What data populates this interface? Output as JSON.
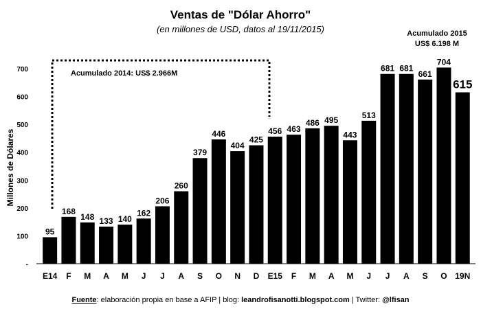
{
  "chart_data": {
    "type": "bar",
    "title": "Ventas de \"Dólar Ahorro\"",
    "subtitle": "(en millones de USD, datos al 19/11/2015)",
    "ylabel": "Millones de Dólares",
    "xlabel": "",
    "ylim": [
      0,
      700
    ],
    "yticks": [
      "-",
      "100",
      "200",
      "300",
      "400",
      "500",
      "600",
      "700"
    ],
    "grid": false,
    "bar_color": "#000000",
    "categories": [
      "E14",
      "F",
      "M",
      "A",
      "M",
      "J",
      "J",
      "A",
      "S",
      "O",
      "N",
      "D",
      "E15",
      "F",
      "M",
      "A",
      "M",
      "J",
      "J",
      "A",
      "S",
      "O",
      "19N"
    ],
    "values": [
      95,
      168,
      148,
      133,
      140,
      162,
      206,
      260,
      379,
      446,
      404,
      425,
      456,
      463,
      486,
      495,
      443,
      513,
      681,
      681,
      661,
      704,
      615
    ],
    "data_labels": [
      "95",
      "168",
      "148",
      "133",
      "140",
      "162",
      "206",
      "260",
      "379",
      "446",
      "404",
      "425",
      "456",
      "463",
      "486",
      "495",
      "443",
      "513",
      "681",
      "681",
      "661",
      "704",
      "615"
    ],
    "annotations": {
      "acum_2014": "Acumulado 2014:  US$ 2.966M",
      "acum_2015_line1": "Acumulado  2015",
      "acum_2015_line2": "US$ 6.198 M"
    }
  },
  "footer": {
    "fuente_label": "Fuente",
    "fuente_text": ": elaboración propia en base a AFIP  |  blog: ",
    "blog": "leandrofisanotti.blogspot.com",
    "twitter_text": "  |  Twitter: ",
    "twitter": "@lfisan"
  }
}
